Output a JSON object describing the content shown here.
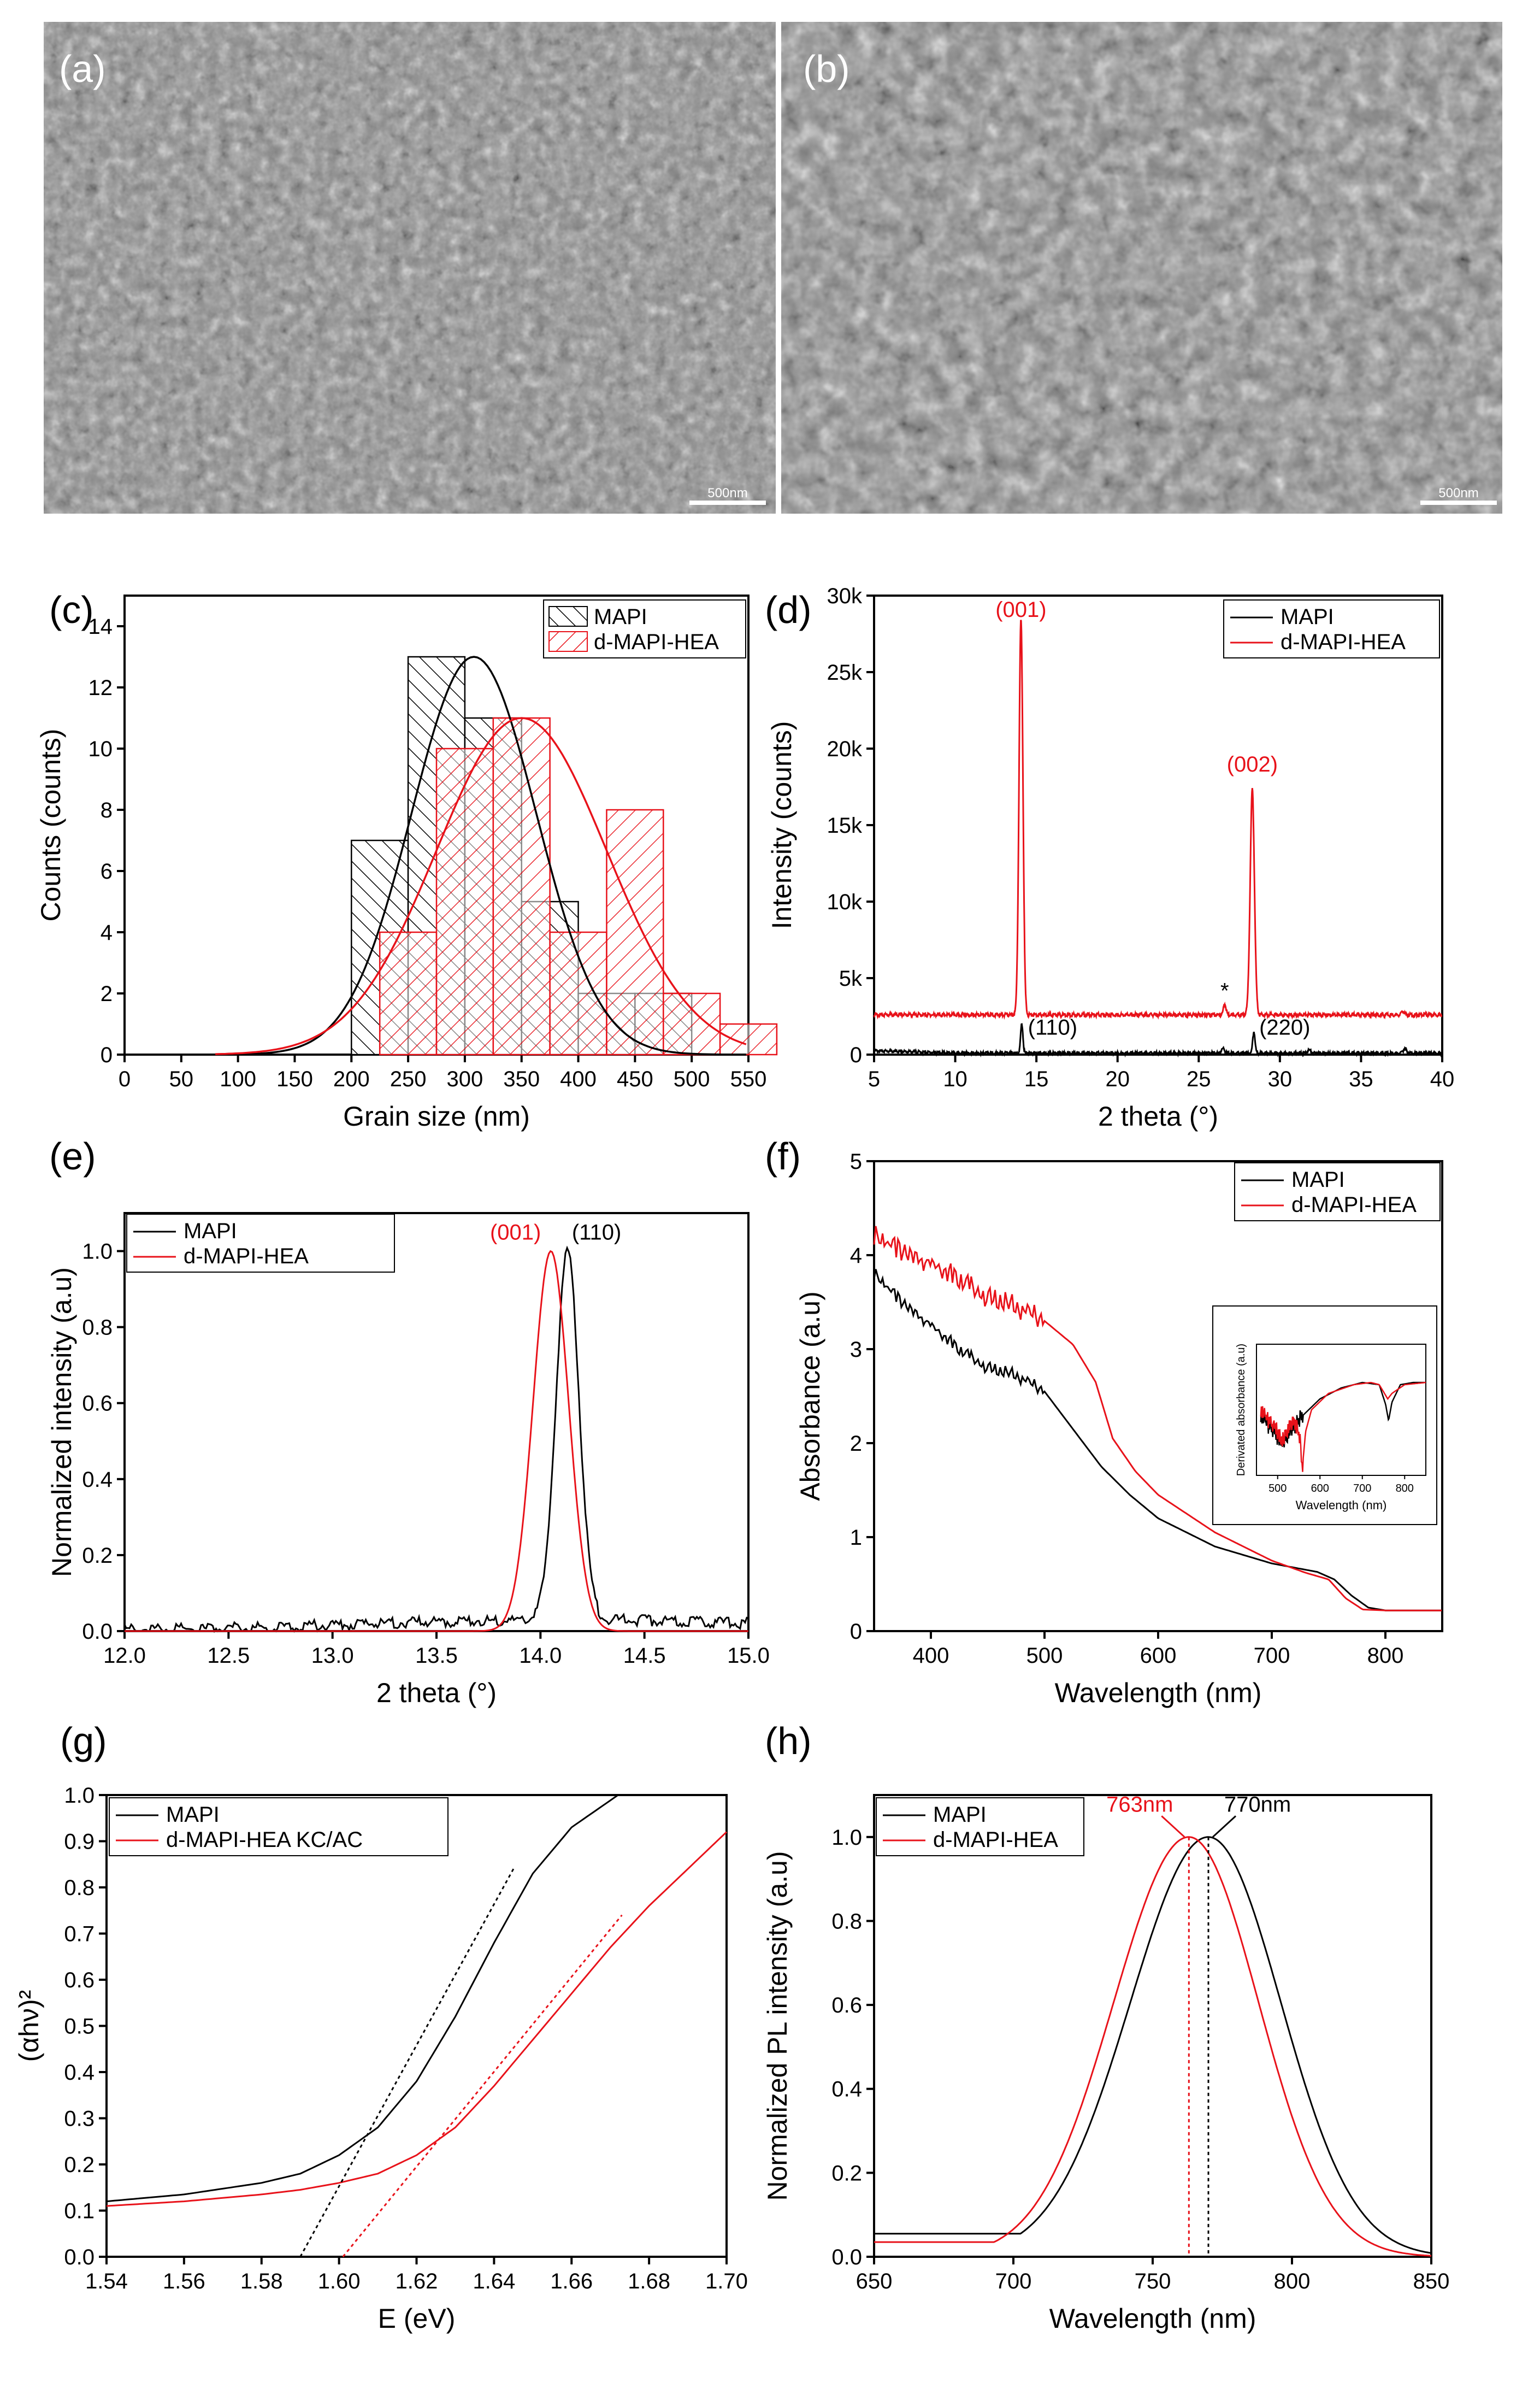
{
  "panels": {
    "a": {
      "label": "(a)",
      "scale_bar": "500nm"
    },
    "b": {
      "label": "(b)",
      "scale_bar": "500nm"
    }
  },
  "colors": {
    "mapi": "#000000",
    "hea": "#e8121a",
    "sem_bg": "#8a8a8a"
  },
  "chart_data": [
    {
      "id": "c",
      "panel_label": "(c)",
      "type": "bar",
      "title": "",
      "xlabel": "Grain size (nm)",
      "ylabel": "Counts (counts)",
      "xlim": [
        0,
        550
      ],
      "ylim": [
        0,
        15
      ],
      "xticks": [
        0,
        50,
        100,
        150,
        200,
        250,
        300,
        350,
        400,
        450,
        500,
        550
      ],
      "yticks": [
        0,
        2,
        4,
        6,
        8,
        10,
        12,
        14
      ],
      "bin_width": 50,
      "series": [
        {
          "name": "MAPI",
          "bin_starts": [
            200,
            250,
            300,
            350,
            400,
            450
          ],
          "values": [
            7,
            13,
            11,
            5,
            2,
            2
          ],
          "fit": {
            "peak": 13,
            "center": 308,
            "sigma": 55
          }
        },
        {
          "name": "d-MAPI-HEA",
          "bin_starts": [
            225,
            275,
            325,
            375,
            425,
            475,
            525
          ],
          "values": [
            4,
            10,
            11,
            4,
            8,
            2,
            1
          ],
          "fit": {
            "peak": 11,
            "center": 350,
            "sigma": 75
          }
        }
      ],
      "legend": [
        "MAPI",
        "d-MAPI-HEA"
      ],
      "legend_loc": "top-right"
    },
    {
      "id": "d",
      "panel_label": "(d)",
      "type": "line",
      "title": "",
      "xlabel": "2 theta (°)",
      "ylabel": "Intensity (counts)",
      "xlim": [
        5,
        40
      ],
      "ylim": [
        0,
        30000
      ],
      "xticks": [
        5,
        10,
        15,
        20,
        25,
        30,
        35,
        40
      ],
      "yticks": [
        0,
        5000,
        10000,
        15000,
        20000,
        25000,
        30000
      ],
      "yticklabels": [
        "0",
        "5k",
        "10k",
        "15k",
        "20k",
        "25k",
        "30k"
      ],
      "series": [
        {
          "name": "MAPI",
          "baseline": 100,
          "peaks": [
            [
              14.1,
              1900,
              0.07
            ],
            [
              28.4,
              1400,
              0.07
            ],
            [
              26.5,
              300,
              0.1
            ],
            [
              31.8,
              200,
              0.1
            ],
            [
              37.7,
              300,
              0.1
            ]
          ]
        },
        {
          "name": "d-MAPI-HEA",
          "baseline": 2600,
          "peaks": [
            [
              14.05,
              25800,
              0.12
            ],
            [
              28.3,
              14700,
              0.13
            ],
            [
              26.6,
              700,
              0.08
            ],
            [
              37.6,
              200,
              0.1
            ]
          ]
        }
      ],
      "annotations": [
        {
          "text": "(001)",
          "x": 14.05,
          "y": 28600,
          "color": "red"
        },
        {
          "text": "(002)",
          "x": 28.3,
          "y": 18500,
          "color": "red"
        },
        {
          "text": "(110)",
          "x": 16.0,
          "y": 1300,
          "color": "black"
        },
        {
          "text": "(220)",
          "x": 30.3,
          "y": 1300,
          "color": "black"
        },
        {
          "text": "*",
          "x": 26.6,
          "y": 3700,
          "color": "black"
        }
      ],
      "legend": [
        "MAPI",
        "d-MAPI-HEA"
      ],
      "legend_loc": "top-right"
    },
    {
      "id": "e",
      "panel_label": "(e)",
      "type": "line",
      "title": "",
      "xlabel": "2 theta (°)",
      "ylabel": "Normalized intensity (a.u)",
      "xlim": [
        12,
        15
      ],
      "ylim": [
        0,
        1.1
      ],
      "xticks": [
        12.0,
        12.5,
        13.0,
        13.5,
        14.0,
        14.5,
        15.0
      ],
      "yticks": [
        0.0,
        0.2,
        0.4,
        0.6,
        0.8,
        1.0
      ],
      "series": [
        {
          "name": "MAPI",
          "center": 14.13,
          "width": 0.055,
          "baseline": 0.03
        },
        {
          "name": "d-MAPI-HEA",
          "center": 14.05,
          "width": 0.085,
          "baseline": 0.0
        }
      ],
      "annotations": [
        {
          "text": "(001)",
          "x": 13.88,
          "y": 1.03,
          "color": "red"
        },
        {
          "text": "(110)",
          "x": 14.27,
          "y": 1.03,
          "color": "black"
        }
      ],
      "legend": [
        "MAPI",
        "d-MAPI-HEA"
      ],
      "legend_loc": "top-left"
    },
    {
      "id": "f",
      "panel_label": "(f)",
      "type": "line",
      "title": "",
      "xlabel": "Wavelength (nm)",
      "ylabel": "Absorbance (a.u)",
      "xlim": [
        350,
        850
      ],
      "ylim": [
        0,
        5
      ],
      "xticks": [
        400,
        500,
        600,
        700,
        800
      ],
      "yticks": [
        0,
        1,
        2,
        3,
        4,
        5
      ],
      "series": [
        {
          "name": "MAPI",
          "x": [
            350,
            375,
            400,
            425,
            450,
            475,
            500,
            525,
            550,
            575,
            600,
            650,
            700,
            740,
            755,
            770,
            785,
            800,
            850
          ],
          "y": [
            3.8,
            3.5,
            3.25,
            3.0,
            2.8,
            2.72,
            2.55,
            2.15,
            1.75,
            1.45,
            1.2,
            0.9,
            0.72,
            0.63,
            0.55,
            0.38,
            0.25,
            0.22,
            0.22
          ]
        },
        {
          "name": "d-MAPI-HEA",
          "x": [
            350,
            375,
            400,
            425,
            450,
            475,
            500,
            525,
            545,
            560,
            580,
            600,
            650,
            700,
            730,
            750,
            765,
            780,
            800,
            850
          ],
          "y": [
            4.2,
            4.05,
            3.9,
            3.75,
            3.55,
            3.45,
            3.3,
            3.05,
            2.65,
            2.05,
            1.7,
            1.45,
            1.05,
            0.75,
            0.62,
            0.55,
            0.35,
            0.23,
            0.22,
            0.22
          ]
        }
      ],
      "inset": {
        "xlabel": "Wavelength (nm)",
        "ylabel": "Derivated absorbance (a.u)",
        "xlim": [
          450,
          850
        ],
        "xticks": [
          500,
          600,
          700,
          800
        ],
        "series": [
          {
            "name": "MAPI",
            "x": [
              460,
              480,
              500,
              510,
              530,
              560,
              600,
              650,
              700,
              740,
              755,
              762,
              770,
              790,
              820,
              850
            ],
            "y": [
              0.5,
              0.4,
              0.3,
              0.25,
              0.35,
              0.5,
              0.65,
              0.75,
              0.8,
              0.78,
              0.6,
              0.45,
              0.62,
              0.78,
              0.8,
              0.8
            ]
          },
          {
            "name": "d-MAPI-HEA",
            "x": [
              460,
              480,
              500,
              510,
              520,
              540,
              552,
              558,
              566,
              580,
              620,
              680,
              720,
              740,
              760,
              770,
              800,
              850
            ],
            "y": [
              0.55,
              0.45,
              0.35,
              0.25,
              0.35,
              0.45,
              0.3,
              0.0,
              0.35,
              0.55,
              0.7,
              0.78,
              0.8,
              0.78,
              0.65,
              0.7,
              0.78,
              0.8
            ]
          }
        ]
      },
      "legend": [
        "MAPI",
        "d-MAPI-HEA"
      ],
      "legend_loc": "top-right"
    },
    {
      "id": "g",
      "panel_label": "(g)",
      "type": "line",
      "title": "",
      "xlabel": "E (eV)",
      "ylabel": "(αhν)²",
      "xlim": [
        1.54,
        1.7
      ],
      "ylim": [
        0,
        1.0
      ],
      "xticks": [
        1.54,
        1.56,
        1.58,
        1.6,
        1.62,
        1.64,
        1.66,
        1.68,
        1.7
      ],
      "yticks": [
        0.0,
        0.1,
        0.2,
        0.3,
        0.4,
        0.5,
        0.6,
        0.7,
        0.8,
        0.9,
        1.0
      ],
      "series": [
        {
          "name": "MAPI",
          "x": [
            1.54,
            1.56,
            1.58,
            1.59,
            1.6,
            1.61,
            1.62,
            1.63,
            1.64,
            1.65,
            1.66,
            1.672
          ],
          "y": [
            0.12,
            0.135,
            0.16,
            0.18,
            0.22,
            0.28,
            0.38,
            0.52,
            0.68,
            0.83,
            0.93,
            1.0
          ]
        },
        {
          "name": "d-MAPI-HEA KC/AC",
          "x": [
            1.54,
            1.56,
            1.58,
            1.59,
            1.6,
            1.61,
            1.62,
            1.63,
            1.64,
            1.65,
            1.66,
            1.67,
            1.68,
            1.69,
            1.7
          ],
          "y": [
            0.11,
            0.12,
            0.135,
            0.145,
            0.16,
            0.18,
            0.22,
            0.28,
            0.37,
            0.47,
            0.57,
            0.67,
            0.76,
            0.84,
            0.92
          ]
        }
      ],
      "tangents": [
        {
          "series": "MAPI",
          "x": [
            1.59,
            1.645
          ],
          "y": [
            0.0,
            0.84
          ]
        },
        {
          "series": "d-MAPI-HEA KC/AC",
          "x": [
            1.601,
            1.673
          ],
          "y": [
            0.0,
            0.74
          ]
        }
      ],
      "legend": [
        "MAPI",
        "d-MAPI-HEA KC/AC"
      ],
      "legend_loc": "top-left"
    },
    {
      "id": "h",
      "panel_label": "(h)",
      "type": "line",
      "title": "",
      "xlabel": "Wavelength (nm)",
      "ylabel": "Normalized PL intensity (a.u)",
      "xlim": [
        650,
        850
      ],
      "ylim": [
        0,
        1.1
      ],
      "xticks": [
        650,
        700,
        750,
        800,
        850
      ],
      "yticks": [
        0.0,
        0.2,
        0.4,
        0.6,
        0.8,
        1.0
      ],
      "series": [
        {
          "name": "MAPI",
          "center": 770,
          "sigma_left": 28,
          "sigma_right": 26,
          "baseline": 0.055
        },
        {
          "name": "d-MAPI-HEA",
          "center": 763,
          "sigma_left": 27,
          "sigma_right": 25,
          "baseline": 0.035
        }
      ],
      "markers": [
        {
          "text": "763nm",
          "x": 763,
          "color": "red"
        },
        {
          "text": "770nm",
          "x": 770,
          "color": "black"
        }
      ],
      "legend": [
        "MAPI",
        "d-MAPI-HEA"
      ],
      "legend_loc": "top-left"
    }
  ]
}
